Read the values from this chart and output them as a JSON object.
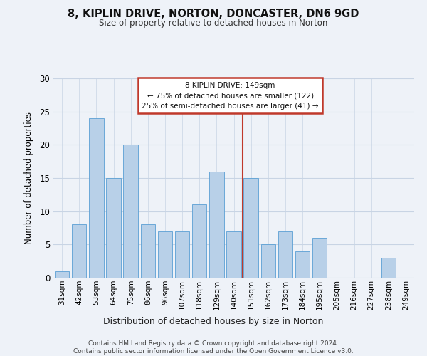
{
  "title": "8, KIPLIN DRIVE, NORTON, DONCASTER, DN6 9GD",
  "subtitle": "Size of property relative to detached houses in Norton",
  "xlabel": "Distribution of detached houses by size in Norton",
  "ylabel": "Number of detached properties",
  "categories": [
    "31sqm",
    "42sqm",
    "53sqm",
    "64sqm",
    "75sqm",
    "86sqm",
    "96sqm",
    "107sqm",
    "118sqm",
    "129sqm",
    "140sqm",
    "151sqm",
    "162sqm",
    "173sqm",
    "184sqm",
    "195sqm",
    "205sqm",
    "216sqm",
    "227sqm",
    "238sqm",
    "249sqm"
  ],
  "values": [
    1,
    8,
    24,
    15,
    20,
    8,
    7,
    7,
    11,
    16,
    7,
    15,
    5,
    7,
    4,
    6,
    0,
    0,
    0,
    3,
    0
  ],
  "bar_color": "#b8d0e8",
  "bar_edge_color": "#5a9fd4",
  "highlight_color": "#c0392b",
  "annotation_text": "8 KIPLIN DRIVE: 149sqm\n← 75% of detached houses are smaller (122)\n25% of semi-detached houses are larger (41) →",
  "annotation_box_color": "#ffffff",
  "annotation_box_edge_color": "#c0392b",
  "ylim": [
    0,
    30
  ],
  "yticks": [
    0,
    5,
    10,
    15,
    20,
    25,
    30
  ],
  "footer": "Contains HM Land Registry data © Crown copyright and database right 2024.\nContains public sector information licensed under the Open Government Licence v3.0.",
  "bg_color": "#eef2f8",
  "plot_bg_color": "#eef2f8",
  "grid_color": "#c8d4e4"
}
